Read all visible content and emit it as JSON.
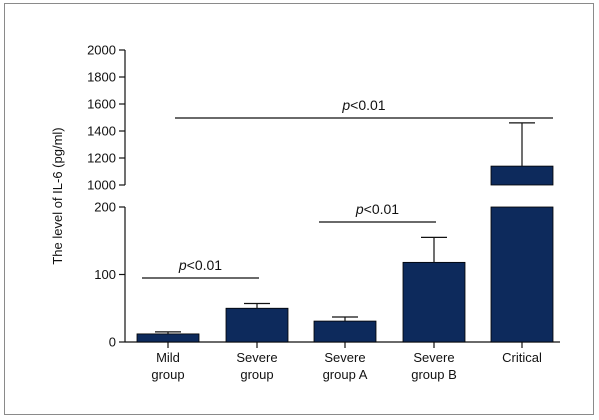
{
  "chart_data": {
    "type": "bar",
    "ylabel": "The level of IL-6 (pg/ml)",
    "xlabel": "",
    "title": "",
    "axis_break": {
      "lower_range": [
        0,
        200
      ],
      "upper_range": [
        1000,
        2000
      ]
    },
    "lower_ticks": [
      0,
      100,
      200
    ],
    "upper_ticks": [
      1000,
      1200,
      1400,
      1600,
      1800,
      2000
    ],
    "bar_color": "#0d2a5c",
    "categories": [
      [
        "Mild",
        "group"
      ],
      [
        "Severe",
        "group"
      ],
      [
        "Severe",
        "group A"
      ],
      [
        "Severe",
        "group B"
      ],
      [
        "Critical"
      ]
    ],
    "values": [
      12,
      50,
      31,
      118,
      1140
    ],
    "errors": [
      3,
      7,
      6,
      37,
      320
    ],
    "annotations": [
      {
        "from": 0,
        "to": 1,
        "label_italic": "p",
        "label": "<0.01"
      },
      {
        "from": 2,
        "to": 3,
        "label_italic": "p",
        "label": "<0.01"
      },
      {
        "from": 0,
        "to": 4,
        "label_italic": "p",
        "label": "<0.01"
      }
    ]
  }
}
